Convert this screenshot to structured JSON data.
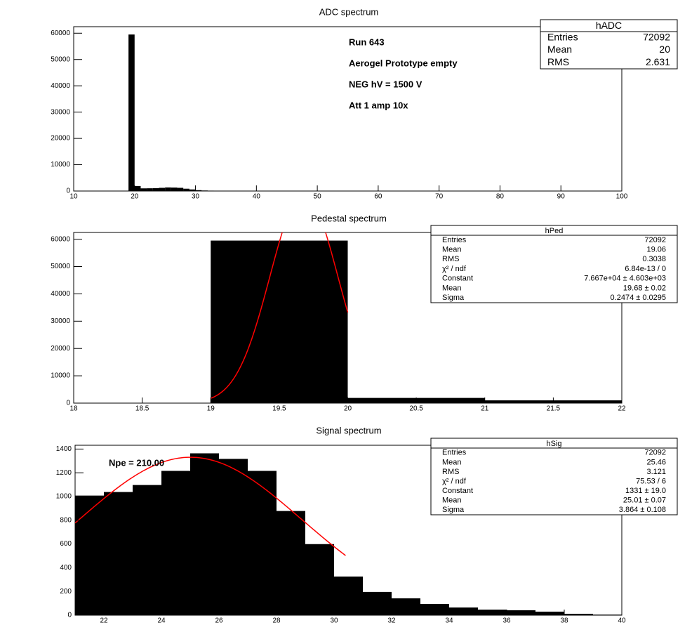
{
  "chart_data": [
    {
      "type": "histogram",
      "title": "ADC spectrum",
      "bins": [
        19,
        20,
        21,
        22,
        23,
        24,
        25,
        26,
        27,
        28,
        29,
        30,
        31,
        32,
        33,
        34,
        35,
        36,
        37,
        38,
        39,
        40
      ],
      "values": [
        59500,
        1900,
        1008,
        1038,
        1097,
        1216,
        1364,
        1317,
        1216,
        878,
        599,
        326,
        196,
        142,
        95,
        65,
        47,
        42,
        30,
        12,
        5
      ],
      "color": "#000000",
      "xlim": [
        10,
        100
      ],
      "xticks": [
        10,
        20,
        30,
        40,
        50,
        60,
        70,
        80,
        90,
        100
      ],
      "ylim": [
        0,
        62475
      ],
      "yticks": [
        0,
        10000,
        20000,
        30000,
        40000,
        50000,
        60000
      ],
      "stats_title": "hADC",
      "stats": [
        {
          "name": "Entries",
          "value": 72092
        },
        {
          "name": "Mean",
          "value": 20
        },
        {
          "name": "RMS",
          "value": 2.631
        }
      ],
      "annotations": [
        "Run  643",
        "Aerogel Prototype empty",
        "NEG hV = 1500 V",
        "Att 1 amp 10x"
      ]
    },
    {
      "type": "histogram",
      "title": "Pedestal spectrum",
      "bins": [
        18,
        19,
        20,
        21,
        22
      ],
      "values": [
        0,
        59500,
        1900,
        1008
      ],
      "color": "#000000",
      "xlim": [
        18,
        22
      ],
      "xticks": [
        18,
        18.5,
        19,
        19.5,
        20,
        20.5,
        21,
        21.5,
        22
      ],
      "ylim": [
        0,
        62475
      ],
      "yticks": [
        0,
        10000,
        20000,
        30000,
        40000,
        50000,
        60000
      ],
      "stats_title": "hPed",
      "stats": [
        {
          "name": "Entries",
          "value": 72092
        },
        {
          "name": "Mean",
          "value": 19.06
        },
        {
          "name": "RMS",
          "value": 0.3038
        },
        {
          "name": "χ² / ndf",
          "value": "6.84e-13 / 0"
        }
      ],
      "fit": [
        {
          "name": "Constant",
          "value": 76670,
          "error": 4603,
          "label": "7.667e+04 ± 4.603e+03"
        },
        {
          "name": "Mean",
          "value": 19.68,
          "error": 0.02,
          "label": "19.68 ± 0.02"
        },
        {
          "name": "Sigma",
          "value": 0.2474,
          "error": 0.0295,
          "label": "0.2474 ± 0.0295"
        }
      ],
      "fit_range": [
        19,
        20
      ],
      "fit_color": "#ff0000"
    },
    {
      "type": "histogram",
      "title": "Signal spectrum",
      "bins": [
        21,
        22,
        23,
        24,
        25,
        26,
        27,
        28,
        29,
        30,
        31,
        32,
        33,
        34,
        35,
        36,
        37,
        38,
        39,
        40
      ],
      "values": [
        1008,
        1038,
        1097,
        1216,
        1364,
        1317,
        1216,
        878,
        599,
        326,
        196,
        142,
        95,
        65,
        47,
        42,
        30,
        12,
        5
      ],
      "color": "#000000",
      "xlim": [
        21,
        40
      ],
      "xticks": [
        22,
        24,
        26,
        28,
        30,
        32,
        34,
        36,
        38,
        40
      ],
      "ylim": [
        0,
        1432
      ],
      "yticks": [
        0,
        200,
        400,
        600,
        800,
        1000,
        1200,
        1400
      ],
      "stats_title": "hSig",
      "stats": [
        {
          "name": "Entries",
          "value": 72092
        },
        {
          "name": "Mean",
          "value": 25.46
        },
        {
          "name": "RMS",
          "value": 3.121
        },
        {
          "name": "χ² / ndf",
          "value": "75.53 / 6"
        }
      ],
      "fit": [
        {
          "name": "Constant",
          "value": 1331,
          "error": 19.0,
          "label": "1331 ± 19.0"
        },
        {
          "name": "Mean",
          "value": 25.01,
          "error": 0.07,
          "label": "25.01 ± 0.07"
        },
        {
          "name": "Sigma",
          "value": 3.864,
          "error": 0.108,
          "label": "3.864 ± 0.108"
        }
      ],
      "fit_range": [
        21,
        30.4
      ],
      "fit_color": "#ff0000",
      "annotations": [
        "Npe = 210.00"
      ]
    }
  ]
}
